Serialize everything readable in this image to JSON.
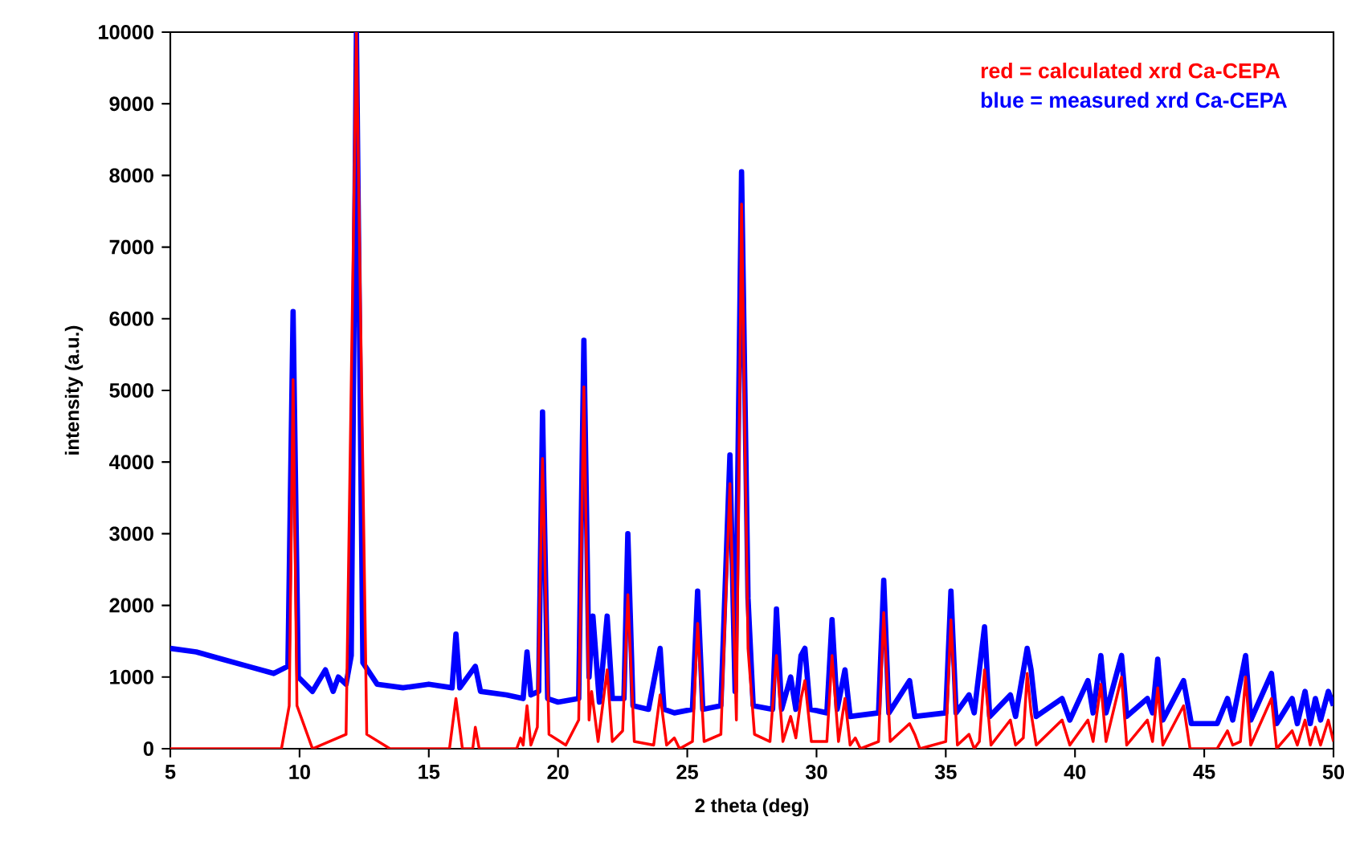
{
  "chart_data": {
    "type": "line",
    "xlabel": "2 theta (deg)",
    "ylabel": "intensity (a.u.)",
    "xlim": [
      5,
      50
    ],
    "ylim": [
      0,
      10000
    ],
    "xticks": [
      5,
      10,
      15,
      20,
      25,
      30,
      35,
      40,
      45,
      50
    ],
    "yticks": [
      0,
      1000,
      2000,
      3000,
      4000,
      5000,
      6000,
      7000,
      8000,
      9000,
      10000
    ],
    "legend": "top right",
    "series": [
      {
        "name": "red = calculated xrd Ca-CEPA",
        "color": "#ff0000",
        "x": [
          5,
          9.3,
          9.6,
          9.75,
          9.9,
          10.5,
          11.8,
          12.2,
          12.6,
          13.5,
          15.8,
          16.05,
          16.3,
          16.7,
          16.8,
          16.95,
          18.4,
          18.55,
          18.65,
          18.8,
          18.95,
          19.2,
          19.4,
          19.65,
          20.3,
          20.8,
          21.0,
          21.2,
          21.3,
          21.55,
          21.9,
          22.1,
          22.5,
          22.7,
          22.95,
          23.7,
          23.95,
          24.2,
          24.5,
          24.7,
          25.2,
          25.4,
          25.65,
          26.3,
          26.65,
          26.9,
          27.1,
          27.35,
          27.6,
          28.2,
          28.45,
          28.7,
          29.0,
          29.2,
          29.4,
          29.55,
          29.8,
          30.4,
          30.6,
          30.85,
          31.1,
          31.3,
          31.5,
          31.7,
          32.4,
          32.6,
          32.85,
          33.6,
          33.8,
          34.0,
          35.0,
          35.2,
          35.45,
          35.9,
          36.1,
          36.3,
          36.5,
          36.75,
          37.5,
          37.7,
          38.0,
          38.15,
          38.3,
          38.5,
          39.5,
          39.8,
          40.5,
          40.7,
          41.0,
          41.2,
          41.8,
          42.0,
          42.8,
          43.0,
          43.2,
          43.4,
          44.2,
          44.45,
          45.5,
          45.9,
          46.1,
          46.4,
          46.6,
          46.8,
          47.6,
          47.8,
          48.4,
          48.6,
          48.9,
          49.1,
          49.3,
          49.5,
          49.8,
          50
        ],
        "values": [
          0,
          0,
          600,
          5150,
          600,
          0,
          200,
          10000,
          200,
          0,
          0,
          700,
          0,
          0,
          300,
          0,
          0,
          150,
          50,
          600,
          50,
          300,
          4050,
          200,
          50,
          400,
          5050,
          400,
          800,
          100,
          1100,
          100,
          250,
          2150,
          100,
          50,
          750,
          50,
          150,
          0,
          100,
          1750,
          100,
          200,
          3700,
          400,
          7600,
          1400,
          200,
          100,
          1300,
          100,
          450,
          150,
          700,
          950,
          100,
          100,
          1300,
          100,
          700,
          50,
          150,
          0,
          100,
          1900,
          100,
          350,
          200,
          0,
          100,
          1800,
          50,
          200,
          0,
          100,
          1100,
          50,
          400,
          50,
          150,
          1050,
          500,
          50,
          400,
          50,
          400,
          100,
          900,
          100,
          1000,
          50,
          400,
          100,
          850,
          50,
          600,
          0,
          0,
          250,
          50,
          100,
          1000,
          50,
          700,
          0,
          250,
          50,
          400,
          50,
          300,
          50,
          400,
          100
        ]
      },
      {
        "name": "blue = measured xrd Ca-CEPA",
        "color": "#0000ff",
        "x": [
          5,
          6,
          7,
          8,
          9,
          9.55,
          9.75,
          9.95,
          10.5,
          11.0,
          11.3,
          11.5,
          11.8,
          12.0,
          12.2,
          12.45,
          13,
          14,
          15.0,
          15.9,
          16.05,
          16.2,
          16.8,
          17.0,
          18.0,
          18.65,
          18.8,
          18.95,
          19.25,
          19.4,
          19.6,
          20.0,
          20.8,
          21.0,
          21.2,
          21.35,
          21.6,
          21.9,
          22.1,
          22.55,
          22.7,
          22.9,
          23.5,
          23.95,
          24.1,
          24.5,
          25.2,
          25.4,
          25.6,
          26.3,
          26.65,
          26.85,
          27.1,
          27.35,
          27.55,
          28.3,
          28.45,
          28.65,
          29.0,
          29.2,
          29.4,
          29.55,
          29.75,
          30.4,
          30.6,
          30.8,
          31.1,
          31.3,
          32.4,
          32.6,
          32.8,
          33.6,
          33.8,
          35.0,
          35.2,
          35.4,
          35.9,
          36.1,
          36.5,
          36.7,
          37.5,
          37.7,
          38.15,
          38.3,
          38.5,
          39.5,
          39.8,
          40.5,
          40.7,
          41.0,
          41.2,
          41.8,
          42.0,
          42.8,
          43.0,
          43.2,
          43.4,
          44.2,
          44.5,
          45.5,
          45.9,
          46.1,
          46.6,
          46.8,
          47.6,
          47.8,
          48.4,
          48.6,
          48.9,
          49.1,
          49.3,
          49.5,
          49.8,
          50
        ],
        "values": [
          1400,
          1350,
          1250,
          1150,
          1050,
          1150,
          6100,
          1000,
          800,
          1100,
          800,
          1000,
          900,
          1300,
          10000,
          1200,
          900,
          850,
          900,
          850,
          1600,
          850,
          1150,
          800,
          750,
          700,
          1350,
          750,
          800,
          4700,
          700,
          650,
          700,
          5700,
          1000,
          1850,
          650,
          1850,
          700,
          700,
          3000,
          600,
          550,
          1400,
          550,
          500,
          550,
          2200,
          550,
          600,
          4100,
          800,
          8050,
          2100,
          600,
          550,
          1950,
          550,
          1000,
          550,
          1300,
          1400,
          550,
          500,
          1800,
          550,
          1100,
          450,
          500,
          2350,
          500,
          950,
          450,
          500,
          2200,
          500,
          750,
          500,
          1700,
          450,
          750,
          450,
          1400,
          1100,
          450,
          700,
          400,
          950,
          500,
          1300,
          500,
          1300,
          450,
          700,
          500,
          1250,
          400,
          950,
          350,
          350,
          700,
          400,
          1300,
          400,
          1050,
          350,
          700,
          350,
          800,
          350,
          700,
          400,
          800,
          600
        ]
      }
    ]
  }
}
